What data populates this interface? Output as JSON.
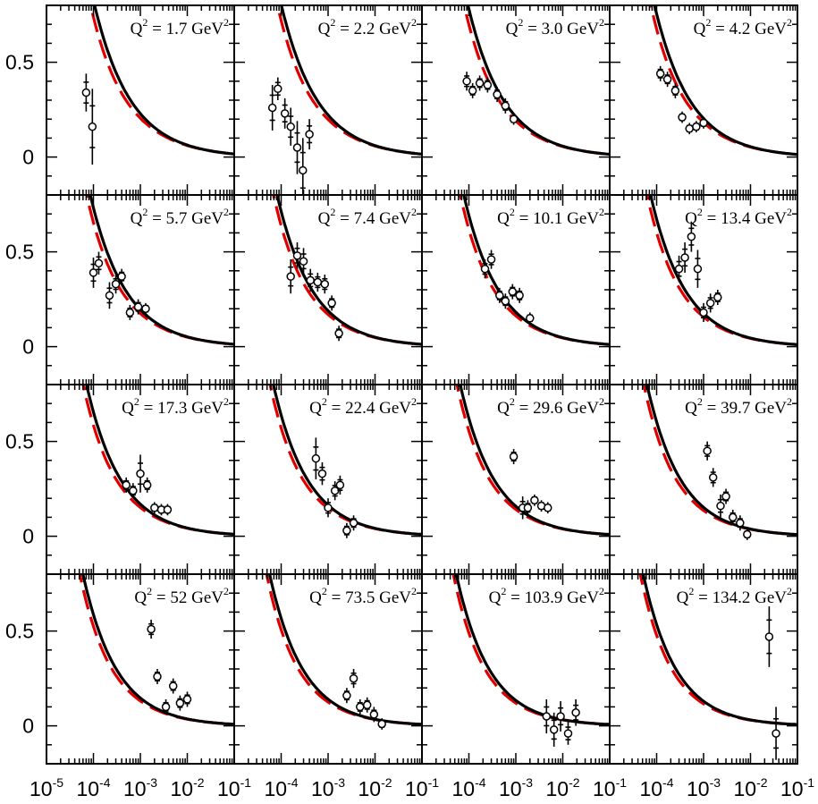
{
  "chart_data": {
    "type": "scatter",
    "layout": "4x4 grid of panels",
    "xscale": "log",
    "xlim": [
      1e-05,
      0.1
    ],
    "ylim": [
      -0.2,
      0.8
    ],
    "y_ticks": [
      0,
      0.5
    ],
    "y_tick_labels": [
      "0",
      "0.5"
    ],
    "x_tick_labels": [
      {
        "base": "10",
        "exp": "-5"
      },
      {
        "base": "10",
        "exp": "-4"
      },
      {
        "base": "10",
        "exp": "-3"
      },
      {
        "base": "10",
        "exp": "-2"
      },
      {
        "base": "10",
        "exp": "-1"
      }
    ],
    "series_styles": [
      {
        "name": "solid curve",
        "color": "#000000",
        "dash": "solid"
      },
      {
        "name": "dashed curve",
        "color": "#e00000",
        "dash": "dashed"
      }
    ],
    "panels": [
      {
        "label": {
          "prefix": "Q",
          "sup": "2",
          "value": " = 1.7 GeV",
          "unit_sup": "2"
        },
        "Q2": 1.7,
        "points": [
          {
            "x": 7e-05,
            "y": 0.34,
            "err": 0.1
          },
          {
            "x": 9.5e-05,
            "y": 0.16,
            "err": 0.2
          }
        ]
      },
      {
        "label": {
          "prefix": "Q",
          "sup": "2",
          "value": " = 2.2 GeV",
          "unit_sup": "2"
        },
        "Q2": 2.2,
        "points": [
          {
            "x": 6.5e-05,
            "y": 0.26,
            "err": 0.12
          },
          {
            "x": 8.5e-05,
            "y": 0.36,
            "err": 0.06
          },
          {
            "x": 0.00012,
            "y": 0.23,
            "err": 0.08
          },
          {
            "x": 0.00016,
            "y": 0.16,
            "err": 0.1
          },
          {
            "x": 0.00022,
            "y": 0.05,
            "err": 0.14
          },
          {
            "x": 0.00029,
            "y": -0.07,
            "err": 0.17
          },
          {
            "x": 0.0004,
            "y": 0.12,
            "err": 0.08
          }
        ]
      },
      {
        "label": {
          "prefix": "Q",
          "sup": "2",
          "value": " = 3.0 GeV",
          "unit_sup": "2"
        },
        "Q2": 3.0,
        "points": [
          {
            "x": 9e-05,
            "y": 0.4,
            "err": 0.05
          },
          {
            "x": 0.00012,
            "y": 0.35,
            "err": 0.04
          },
          {
            "x": 0.00017,
            "y": 0.39,
            "err": 0.04
          },
          {
            "x": 0.00025,
            "y": 0.38,
            "err": 0.04
          },
          {
            "x": 0.0004,
            "y": 0.33,
            "err": 0.04
          },
          {
            "x": 0.0006,
            "y": 0.27,
            "err": 0.04
          },
          {
            "x": 0.0009,
            "y": 0.2,
            "err": 0.03
          }
        ]
      },
      {
        "label": {
          "prefix": "Q",
          "sup": "2",
          "value": " = 4.2 GeV",
          "unit_sup": "2"
        },
        "Q2": 4.2,
        "points": [
          {
            "x": 0.00012,
            "y": 0.44,
            "err": 0.04
          },
          {
            "x": 0.00017,
            "y": 0.41,
            "err": 0.04
          },
          {
            "x": 0.00025,
            "y": 0.35,
            "err": 0.04
          },
          {
            "x": 0.00035,
            "y": 0.21,
            "err": 0.03
          },
          {
            "x": 0.0005,
            "y": 0.15,
            "err": 0.03
          },
          {
            "x": 0.0007,
            "y": 0.16,
            "err": 0.03
          },
          {
            "x": 0.001,
            "y": 0.18,
            "err": 0.03
          }
        ]
      },
      {
        "label": {
          "prefix": "Q",
          "sup": "2",
          "value": " = 5.7 GeV",
          "unit_sup": "2"
        },
        "Q2": 5.7,
        "points": [
          {
            "x": 0.0001,
            "y": 0.39,
            "err": 0.08
          },
          {
            "x": 0.00013,
            "y": 0.44,
            "err": 0.06
          },
          {
            "x": 0.00022,
            "y": 0.27,
            "err": 0.07
          },
          {
            "x": 0.0003,
            "y": 0.33,
            "err": 0.05
          },
          {
            "x": 0.0004,
            "y": 0.37,
            "err": 0.04
          },
          {
            "x": 0.0006,
            "y": 0.18,
            "err": 0.04
          },
          {
            "x": 0.0009,
            "y": 0.21,
            "err": 0.04
          },
          {
            "x": 0.0013,
            "y": 0.2,
            "err": 0.03
          }
        ]
      },
      {
        "label": {
          "prefix": "Q",
          "sup": "2",
          "value": " = 7.4 GeV",
          "unit_sup": "2"
        },
        "Q2": 7.4,
        "points": [
          {
            "x": 0.00016,
            "y": 0.37,
            "err": 0.09
          },
          {
            "x": 0.00022,
            "y": 0.48,
            "err": 0.07
          },
          {
            "x": 0.0003,
            "y": 0.45,
            "err": 0.07
          },
          {
            "x": 0.00042,
            "y": 0.35,
            "err": 0.06
          },
          {
            "x": 0.0006,
            "y": 0.34,
            "err": 0.05
          },
          {
            "x": 0.00085,
            "y": 0.33,
            "err": 0.05
          },
          {
            "x": 0.0012,
            "y": 0.23,
            "err": 0.04
          },
          {
            "x": 0.0017,
            "y": 0.07,
            "err": 0.04
          }
        ]
      },
      {
        "label": {
          "prefix": "Q",
          "sup": "2",
          "value": " = 10.1 GeV",
          "unit_sup": "2"
        },
        "Q2": 10.1,
        "points": [
          {
            "x": 0.00022,
            "y": 0.41,
            "err": 0.05
          },
          {
            "x": 0.0003,
            "y": 0.46,
            "err": 0.05
          },
          {
            "x": 0.00045,
            "y": 0.27,
            "err": 0.04
          },
          {
            "x": 0.0006,
            "y": 0.24,
            "err": 0.04
          },
          {
            "x": 0.00085,
            "y": 0.29,
            "err": 0.04
          },
          {
            "x": 0.0012,
            "y": 0.27,
            "err": 0.04
          },
          {
            "x": 0.002,
            "y": 0.15,
            "err": 0.03
          }
        ]
      },
      {
        "label": {
          "prefix": "Q",
          "sup": "2",
          "value": " = 13.4 GeV",
          "unit_sup": "2"
        },
        "Q2": 13.4,
        "points": [
          {
            "x": 0.0003,
            "y": 0.41,
            "err": 0.07
          },
          {
            "x": 0.0004,
            "y": 0.47,
            "err": 0.08
          },
          {
            "x": 0.00055,
            "y": 0.58,
            "err": 0.08
          },
          {
            "x": 0.00075,
            "y": 0.41,
            "err": 0.1
          },
          {
            "x": 0.001,
            "y": 0.18,
            "err": 0.05
          },
          {
            "x": 0.0014,
            "y": 0.23,
            "err": 0.05
          },
          {
            "x": 0.002,
            "y": 0.26,
            "err": 0.04
          }
        ]
      },
      {
        "label": {
          "prefix": "Q",
          "sup": "2",
          "value": " = 17.3 GeV",
          "unit_sup": "2"
        },
        "Q2": 17.3,
        "points": [
          {
            "x": 0.0005,
            "y": 0.27,
            "err": 0.04
          },
          {
            "x": 0.0007,
            "y": 0.24,
            "err": 0.04
          },
          {
            "x": 0.001,
            "y": 0.33,
            "err": 0.1
          },
          {
            "x": 0.0014,
            "y": 0.27,
            "err": 0.04
          },
          {
            "x": 0.002,
            "y": 0.15,
            "err": 0.03
          },
          {
            "x": 0.0028,
            "y": 0.14,
            "err": 0.03
          },
          {
            "x": 0.0038,
            "y": 0.14,
            "err": 0.03
          }
        ]
      },
      {
        "label": {
          "prefix": "Q",
          "sup": "2",
          "value": " = 22.4 GeV",
          "unit_sup": "2"
        },
        "Q2": 22.4,
        "points": [
          {
            "x": 0.00055,
            "y": 0.41,
            "err": 0.11
          },
          {
            "x": 0.00075,
            "y": 0.33,
            "err": 0.06
          },
          {
            "x": 0.001,
            "y": 0.15,
            "err": 0.05
          },
          {
            "x": 0.0014,
            "y": 0.24,
            "err": 0.05
          },
          {
            "x": 0.0018,
            "y": 0.27,
            "err": 0.05
          },
          {
            "x": 0.0025,
            "y": 0.03,
            "err": 0.04
          },
          {
            "x": 0.0035,
            "y": 0.07,
            "err": 0.04
          }
        ]
      },
      {
        "label": {
          "prefix": "Q",
          "sup": "2",
          "value": " = 29.6 GeV",
          "unit_sup": "2"
        },
        "Q2": 29.6,
        "points": [
          {
            "x": 0.0009,
            "y": 0.42,
            "err": 0.04
          },
          {
            "x": 0.0014,
            "y": 0.15,
            "err": 0.06
          },
          {
            "x": 0.0018,
            "y": 0.15,
            "err": 0.04
          },
          {
            "x": 0.0025,
            "y": 0.19,
            "err": 0.03
          },
          {
            "x": 0.0035,
            "y": 0.16,
            "err": 0.03
          },
          {
            "x": 0.0048,
            "y": 0.15,
            "err": 0.03
          }
        ]
      },
      {
        "label": {
          "prefix": "Q",
          "sup": "2",
          "value": " = 39.7 GeV",
          "unit_sup": "2"
        },
        "Q2": 39.7,
        "points": [
          {
            "x": 0.0012,
            "y": 0.45,
            "err": 0.05
          },
          {
            "x": 0.0016,
            "y": 0.31,
            "err": 0.05
          },
          {
            "x": 0.0023,
            "y": 0.16,
            "err": 0.06
          },
          {
            "x": 0.003,
            "y": 0.21,
            "err": 0.04
          },
          {
            "x": 0.0042,
            "y": 0.1,
            "err": 0.04
          },
          {
            "x": 0.006,
            "y": 0.07,
            "err": 0.04
          },
          {
            "x": 0.0085,
            "y": 0.01,
            "err": 0.03
          }
        ]
      },
      {
        "label": {
          "prefix": "Q",
          "sup": "2",
          "value": " = 52 GeV",
          "unit_sup": "2"
        },
        "Q2": 52,
        "points": [
          {
            "x": 0.0017,
            "y": 0.51,
            "err": 0.05
          },
          {
            "x": 0.0023,
            "y": 0.26,
            "err": 0.04
          },
          {
            "x": 0.0035,
            "y": 0.1,
            "err": 0.04
          },
          {
            "x": 0.005,
            "y": 0.21,
            "err": 0.04
          },
          {
            "x": 0.007,
            "y": 0.12,
            "err": 0.04
          },
          {
            "x": 0.01,
            "y": 0.14,
            "err": 0.04
          }
        ]
      },
      {
        "label": {
          "prefix": "Q",
          "sup": "2",
          "value": " = 73.5 GeV",
          "unit_sup": "2"
        },
        "Q2": 73.5,
        "points": [
          {
            "x": 0.0025,
            "y": 0.16,
            "err": 0.04
          },
          {
            "x": 0.0035,
            "y": 0.25,
            "err": 0.05
          },
          {
            "x": 0.0048,
            "y": 0.1,
            "err": 0.04
          },
          {
            "x": 0.0068,
            "y": 0.11,
            "err": 0.04
          },
          {
            "x": 0.0095,
            "y": 0.06,
            "err": 0.04
          },
          {
            "x": 0.014,
            "y": 0.01,
            "err": 0.03
          }
        ]
      },
      {
        "label": {
          "prefix": "Q",
          "sup": "2",
          "value": " = 103.9 GeV",
          "unit_sup": "2"
        },
        "Q2": 103.9,
        "points": [
          {
            "x": 0.0045,
            "y": 0.05,
            "err": 0.09
          },
          {
            "x": 0.0065,
            "y": -0.02,
            "err": 0.09
          },
          {
            "x": 0.009,
            "y": 0.05,
            "err": 0.08
          },
          {
            "x": 0.013,
            "y": -0.04,
            "err": 0.06
          },
          {
            "x": 0.019,
            "y": 0.07,
            "err": 0.07
          }
        ]
      },
      {
        "label": {
          "prefix": "Q",
          "sup": "2",
          "value": " = 134.2 GeV",
          "unit_sup": "2"
        },
        "Q2": 134.2,
        "points": [
          {
            "x": 0.025,
            "y": 0.47,
            "err": 0.16
          },
          {
            "x": 0.035,
            "y": -0.04,
            "err": 0.14
          }
        ]
      }
    ]
  }
}
